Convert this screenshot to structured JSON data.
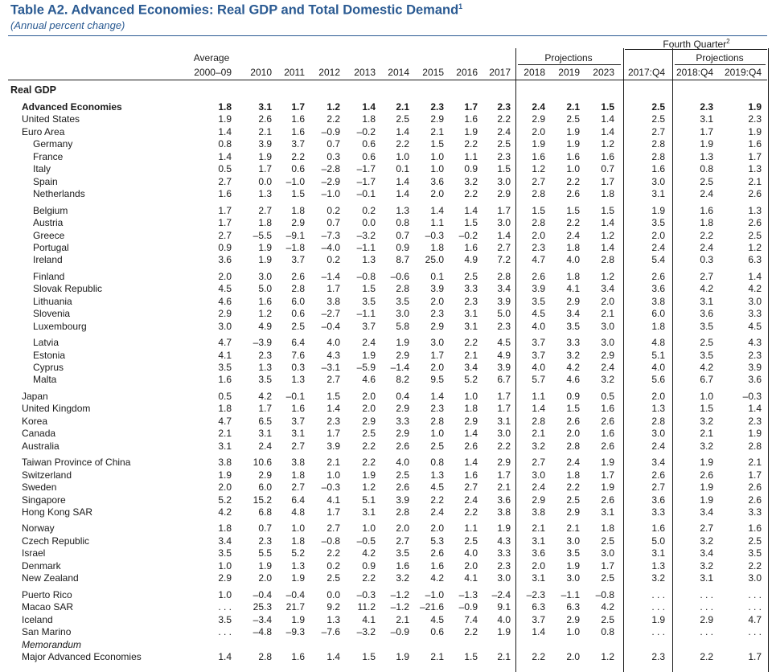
{
  "title": "Table A2. Advanced Economies: Real GDP and Total Domestic Demand",
  "title_note": "1",
  "subtitle": "(Annual percent change)",
  "headers": {
    "fourth_quarter": "Fourth Quarter",
    "fourth_quarter_note": "2",
    "projections": "Projections",
    "average": "Average",
    "columns": [
      "2000–09",
      "2010",
      "2011",
      "2012",
      "2013",
      "2014",
      "2015",
      "2016",
      "2017",
      "2018",
      "2019",
      "2023",
      "2017:Q4",
      "2018:Q4",
      "2019:Q4"
    ]
  },
  "section_label": "Real GDP",
  "rows": [
    {
      "label": "Advanced Economies",
      "bold": true,
      "indent": 1,
      "values": [
        "1.8",
        "3.1",
        "1.7",
        "1.2",
        "1.4",
        "2.1",
        "2.3",
        "1.7",
        "2.3",
        "2.4",
        "2.1",
        "1.5",
        "2.5",
        "2.3",
        "1.9"
      ]
    },
    {
      "label": "United States",
      "indent": 1,
      "values": [
        "1.9",
        "2.6",
        "1.6",
        "2.2",
        "1.8",
        "2.5",
        "2.9",
        "1.6",
        "2.2",
        "2.9",
        "2.5",
        "1.4",
        "2.5",
        "3.1",
        "2.3"
      ]
    },
    {
      "label": "Euro Area",
      "indent": 1,
      "values": [
        "1.4",
        "2.1",
        "1.6",
        "–0.9",
        "–0.2",
        "1.4",
        "2.1",
        "1.9",
        "2.4",
        "2.0",
        "1.9",
        "1.4",
        "2.7",
        "1.7",
        "1.9"
      ]
    },
    {
      "label": "Germany",
      "indent": 2,
      "values": [
        "0.8",
        "3.9",
        "3.7",
        "0.7",
        "0.6",
        "2.2",
        "1.5",
        "2.2",
        "2.5",
        "1.9",
        "1.9",
        "1.2",
        "2.8",
        "1.9",
        "1.6"
      ]
    },
    {
      "label": "France",
      "indent": 2,
      "values": [
        "1.4",
        "1.9",
        "2.2",
        "0.3",
        "0.6",
        "1.0",
        "1.0",
        "1.1",
        "2.3",
        "1.6",
        "1.6",
        "1.6",
        "2.8",
        "1.3",
        "1.7"
      ]
    },
    {
      "label": "Italy",
      "indent": 2,
      "values": [
        "0.5",
        "1.7",
        "0.6",
        "–2.8",
        "–1.7",
        "0.1",
        "1.0",
        "0.9",
        "1.5",
        "1.2",
        "1.0",
        "0.7",
        "1.6",
        "0.8",
        "1.3"
      ]
    },
    {
      "label": "Spain",
      "indent": 2,
      "values": [
        "2.7",
        "0.0",
        "–1.0",
        "–2.9",
        "–1.7",
        "1.4",
        "3.6",
        "3.2",
        "3.0",
        "2.7",
        "2.2",
        "1.7",
        "3.0",
        "2.5",
        "2.1"
      ]
    },
    {
      "label": "Netherlands",
      "indent": 2,
      "values": [
        "1.6",
        "1.3",
        "1.5",
        "–1.0",
        "–0.1",
        "1.4",
        "2.0",
        "2.2",
        "2.9",
        "2.8",
        "2.6",
        "1.8",
        "3.1",
        "2.4",
        "2.6"
      ]
    },
    {
      "label": "Belgium",
      "indent": 2,
      "gap": true,
      "values": [
        "1.7",
        "2.7",
        "1.8",
        "0.2",
        "0.2",
        "1.3",
        "1.4",
        "1.4",
        "1.7",
        "1.5",
        "1.5",
        "1.5",
        "1.9",
        "1.6",
        "1.3"
      ]
    },
    {
      "label": "Austria",
      "indent": 2,
      "values": [
        "1.7",
        "1.8",
        "2.9",
        "0.7",
        "0.0",
        "0.8",
        "1.1",
        "1.5",
        "3.0",
        "2.8",
        "2.2",
        "1.4",
        "3.5",
        "1.8",
        "2.6"
      ]
    },
    {
      "label": "Greece",
      "indent": 2,
      "values": [
        "2.7",
        "–5.5",
        "–9.1",
        "–7.3",
        "–3.2",
        "0.7",
        "–0.3",
        "–0.2",
        "1.4",
        "2.0",
        "2.4",
        "1.2",
        "2.0",
        "2.2",
        "2.5"
      ]
    },
    {
      "label": "Portugal",
      "indent": 2,
      "values": [
        "0.9",
        "1.9",
        "–1.8",
        "–4.0",
        "–1.1",
        "0.9",
        "1.8",
        "1.6",
        "2.7",
        "2.3",
        "1.8",
        "1.4",
        "2.4",
        "2.4",
        "1.2"
      ]
    },
    {
      "label": "Ireland",
      "indent": 2,
      "values": [
        "3.6",
        "1.9",
        "3.7",
        "0.2",
        "1.3",
        "8.7",
        "25.0",
        "4.9",
        "7.2",
        "4.7",
        "4.0",
        "2.8",
        "5.4",
        "0.3",
        "6.3"
      ]
    },
    {
      "label": "Finland",
      "indent": 2,
      "gap": true,
      "values": [
        "2.0",
        "3.0",
        "2.6",
        "–1.4",
        "–0.8",
        "–0.6",
        "0.1",
        "2.5",
        "2.8",
        "2.6",
        "1.8",
        "1.2",
        "2.6",
        "2.7",
        "1.4"
      ]
    },
    {
      "label": "Slovak Republic",
      "indent": 2,
      "values": [
        "4.5",
        "5.0",
        "2.8",
        "1.7",
        "1.5",
        "2.8",
        "3.9",
        "3.3",
        "3.4",
        "3.9",
        "4.1",
        "3.4",
        "3.6",
        "4.2",
        "4.2"
      ]
    },
    {
      "label": "Lithuania",
      "indent": 2,
      "values": [
        "4.6",
        "1.6",
        "6.0",
        "3.8",
        "3.5",
        "3.5",
        "2.0",
        "2.3",
        "3.9",
        "3.5",
        "2.9",
        "2.0",
        "3.8",
        "3.1",
        "3.0"
      ]
    },
    {
      "label": "Slovenia",
      "indent": 2,
      "values": [
        "2.9",
        "1.2",
        "0.6",
        "–2.7",
        "–1.1",
        "3.0",
        "2.3",
        "3.1",
        "5.0",
        "4.5",
        "3.4",
        "2.1",
        "6.0",
        "3.6",
        "3.3"
      ]
    },
    {
      "label": "Luxembourg",
      "indent": 2,
      "values": [
        "3.0",
        "4.9",
        "2.5",
        "–0.4",
        "3.7",
        "5.8",
        "2.9",
        "3.1",
        "2.3",
        "4.0",
        "3.5",
        "3.0",
        "1.8",
        "3.5",
        "4.5"
      ]
    },
    {
      "label": "Latvia",
      "indent": 2,
      "gap": true,
      "values": [
        "4.7",
        "–3.9",
        "6.4",
        "4.0",
        "2.4",
        "1.9",
        "3.0",
        "2.2",
        "4.5",
        "3.7",
        "3.3",
        "3.0",
        "4.8",
        "2.5",
        "4.3"
      ]
    },
    {
      "label": "Estonia",
      "indent": 2,
      "values": [
        "4.1",
        "2.3",
        "7.6",
        "4.3",
        "1.9",
        "2.9",
        "1.7",
        "2.1",
        "4.9",
        "3.7",
        "3.2",
        "2.9",
        "5.1",
        "3.5",
        "2.3"
      ]
    },
    {
      "label": "Cyprus",
      "indent": 2,
      "values": [
        "3.5",
        "1.3",
        "0.3",
        "–3.1",
        "–5.9",
        "–1.4",
        "2.0",
        "3.4",
        "3.9",
        "4.0",
        "4.2",
        "2.4",
        "4.0",
        "4.2",
        "3.9"
      ]
    },
    {
      "label": "Malta",
      "indent": 2,
      "values": [
        "1.6",
        "3.5",
        "1.3",
        "2.7",
        "4.6",
        "8.2",
        "9.5",
        "5.2",
        "6.7",
        "5.7",
        "4.6",
        "3.2",
        "5.6",
        "6.7",
        "3.6"
      ]
    },
    {
      "label": "Japan",
      "indent": 1,
      "gap": true,
      "values": [
        "0.5",
        "4.2",
        "–0.1",
        "1.5",
        "2.0",
        "0.4",
        "1.4",
        "1.0",
        "1.7",
        "1.1",
        "0.9",
        "0.5",
        "2.0",
        "1.0",
        "–0.3"
      ]
    },
    {
      "label": "United Kingdom",
      "indent": 1,
      "values": [
        "1.8",
        "1.7",
        "1.6",
        "1.4",
        "2.0",
        "2.9",
        "2.3",
        "1.8",
        "1.7",
        "1.4",
        "1.5",
        "1.6",
        "1.3",
        "1.5",
        "1.4"
      ]
    },
    {
      "label": "Korea",
      "indent": 1,
      "values": [
        "4.7",
        "6.5",
        "3.7",
        "2.3",
        "2.9",
        "3.3",
        "2.8",
        "2.9",
        "3.1",
        "2.8",
        "2.6",
        "2.6",
        "2.8",
        "3.2",
        "2.3"
      ]
    },
    {
      "label": "Canada",
      "indent": 1,
      "values": [
        "2.1",
        "3.1",
        "3.1",
        "1.7",
        "2.5",
        "2.9",
        "1.0",
        "1.4",
        "3.0",
        "2.1",
        "2.0",
        "1.6",
        "3.0",
        "2.1",
        "1.9"
      ]
    },
    {
      "label": "Australia",
      "indent": 1,
      "values": [
        "3.1",
        "2.4",
        "2.7",
        "3.9",
        "2.2",
        "2.6",
        "2.5",
        "2.6",
        "2.2",
        "3.2",
        "2.8",
        "2.6",
        "2.4",
        "3.2",
        "2.8"
      ]
    },
    {
      "label": "Taiwan Province of China",
      "indent": 1,
      "gap": true,
      "values": [
        "3.8",
        "10.6",
        "3.8",
        "2.1",
        "2.2",
        "4.0",
        "0.8",
        "1.4",
        "2.9",
        "2.7",
        "2.4",
        "1.9",
        "3.4",
        "1.9",
        "2.1"
      ]
    },
    {
      "label": "Switzerland",
      "indent": 1,
      "values": [
        "1.9",
        "2.9",
        "1.8",
        "1.0",
        "1.9",
        "2.5",
        "1.3",
        "1.6",
        "1.7",
        "3.0",
        "1.8",
        "1.7",
        "2.6",
        "2.6",
        "1.7"
      ]
    },
    {
      "label": "Sweden",
      "indent": 1,
      "values": [
        "2.0",
        "6.0",
        "2.7",
        "–0.3",
        "1.2",
        "2.6",
        "4.5",
        "2.7",
        "2.1",
        "2.4",
        "2.2",
        "1.9",
        "2.7",
        "1.9",
        "2.6"
      ]
    },
    {
      "label": "Singapore",
      "indent": 1,
      "values": [
        "5.2",
        "15.2",
        "6.4",
        "4.1",
        "5.1",
        "3.9",
        "2.2",
        "2.4",
        "3.6",
        "2.9",
        "2.5",
        "2.6",
        "3.6",
        "1.9",
        "2.6"
      ]
    },
    {
      "label": "Hong Kong SAR",
      "indent": 1,
      "values": [
        "4.2",
        "6.8",
        "4.8",
        "1.7",
        "3.1",
        "2.8",
        "2.4",
        "2.2",
        "3.8",
        "3.8",
        "2.9",
        "3.1",
        "3.3",
        "3.4",
        "3.3"
      ]
    },
    {
      "label": "Norway",
      "indent": 1,
      "gap": true,
      "values": [
        "1.8",
        "0.7",
        "1.0",
        "2.7",
        "1.0",
        "2.0",
        "2.0",
        "1.1",
        "1.9",
        "2.1",
        "2.1",
        "1.8",
        "1.6",
        "2.7",
        "1.6"
      ]
    },
    {
      "label": "Czech Republic",
      "indent": 1,
      "values": [
        "3.4",
        "2.3",
        "1.8",
        "–0.8",
        "–0.5",
        "2.7",
        "5.3",
        "2.5",
        "4.3",
        "3.1",
        "3.0",
        "2.5",
        "5.0",
        "3.2",
        "2.5"
      ]
    },
    {
      "label": "Israel",
      "indent": 1,
      "values": [
        "3.5",
        "5.5",
        "5.2",
        "2.2",
        "4.2",
        "3.5",
        "2.6",
        "4.0",
        "3.3",
        "3.6",
        "3.5",
        "3.0",
        "3.1",
        "3.4",
        "3.5"
      ]
    },
    {
      "label": "Denmark",
      "indent": 1,
      "values": [
        "1.0",
        "1.9",
        "1.3",
        "0.2",
        "0.9",
        "1.6",
        "1.6",
        "2.0",
        "2.3",
        "2.0",
        "1.9",
        "1.7",
        "1.3",
        "3.2",
        "2.2"
      ]
    },
    {
      "label": "New Zealand",
      "indent": 1,
      "values": [
        "2.9",
        "2.0",
        "1.9",
        "2.5",
        "2.2",
        "3.2",
        "4.2",
        "4.1",
        "3.0",
        "3.1",
        "3.0",
        "2.5",
        "3.2",
        "3.1",
        "3.0"
      ]
    },
    {
      "label": "Puerto Rico",
      "indent": 1,
      "gap": true,
      "values": [
        "1.0",
        "–0.4",
        "–0.4",
        "0.0",
        "–0.3",
        "–1.2",
        "–1.0",
        "–1.3",
        "–2.4",
        "–2.3",
        "–1.1",
        "–0.8",
        ". . .",
        ". . .",
        ". . ."
      ]
    },
    {
      "label": "Macao SAR",
      "indent": 1,
      "values": [
        ". . .",
        "25.3",
        "21.7",
        "9.2",
        "11.2",
        "–1.2",
        "–21.6",
        "–0.9",
        "9.1",
        "6.3",
        "6.3",
        "4.2",
        ". . .",
        ". . .",
        ". . ."
      ]
    },
    {
      "label": "Iceland",
      "indent": 1,
      "values": [
        "3.5",
        "–3.4",
        "1.9",
        "1.3",
        "4.1",
        "2.1",
        "4.5",
        "7.4",
        "4.0",
        "3.7",
        "2.9",
        "2.5",
        "1.9",
        "2.9",
        "4.7"
      ]
    },
    {
      "label": "San Marino",
      "indent": 1,
      "values": [
        ". . .",
        "–4.8",
        "–9.3",
        "–7.6",
        "–3.2",
        "–0.9",
        "0.6",
        "2.2",
        "1.9",
        "1.4",
        "1.0",
        "0.8",
        ". . .",
        ". . .",
        ". . ."
      ]
    },
    {
      "label": "Memorandum",
      "indent": 1,
      "italic": true,
      "values": []
    },
    {
      "label": "Major Advanced Economies",
      "indent": 1,
      "values": [
        "1.4",
        "2.8",
        "1.6",
        "1.4",
        "1.5",
        "1.9",
        "2.1",
        "1.5",
        "2.1",
        "2.2",
        "2.0",
        "1.2",
        "2.3",
        "2.2",
        "1.7"
      ]
    }
  ]
}
